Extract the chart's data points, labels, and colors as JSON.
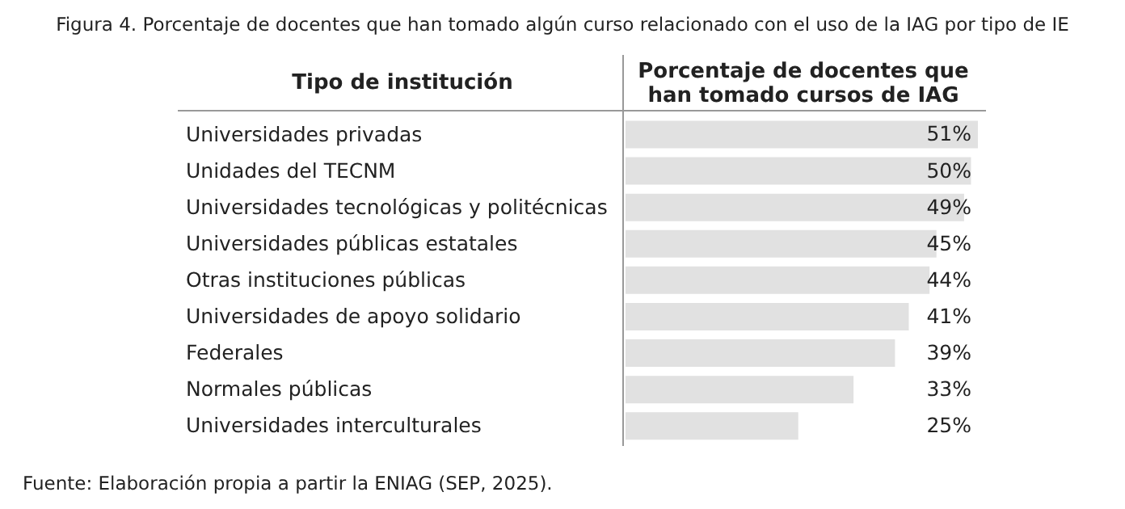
{
  "chart_data": {
    "type": "bar",
    "orientation": "horizontal",
    "title": "Figura 4. Porcentaje de docentes que han tomado algún curso relacionado con el uso de la IAG por tipo de IE",
    "ylabel": "Tipo de institución",
    "xlabel": "Porcentaje de docentes que han tomado cursos de IAG",
    "categories": [
      "Universidades privadas",
      "Unidades del TECNM",
      "Universidades tecnológicas y politécnicas",
      "Universidades públicas estatales",
      "Otras instituciones públicas",
      "Universidades de apoyo solidario",
      "Federales",
      "Normales públicas",
      "Universidades interculturales"
    ],
    "values": [
      51,
      50,
      49,
      45,
      44,
      41,
      39,
      33,
      25
    ],
    "value_labels": [
      "51%",
      "50%",
      "49%",
      "45%",
      "44%",
      "41%",
      "39%",
      "33%",
      "25%"
    ],
    "color": "#e1e1e1",
    "annotations": [
      "Fuente: Elaboración propia a partir la ENIAG (SEP, 2025)."
    ]
  }
}
